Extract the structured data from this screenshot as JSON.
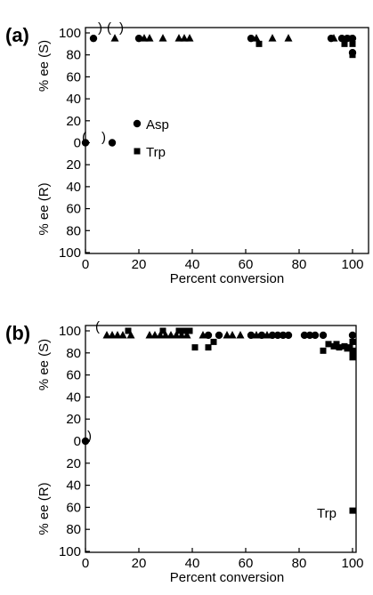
{
  "chart_data": [
    {
      "panel_label": "(a)",
      "type": "scatter",
      "xlabel": "Percent conversion",
      "ylabel_top": "% ee (S)",
      "ylabel_bottom": "% ee (R)",
      "x_ticks": [
        "0",
        "20",
        "40",
        "60",
        "80",
        "100"
      ],
      "y_ticks": [
        "100",
        "80",
        "60",
        "40",
        "20",
        "0",
        "20",
        "40",
        "60",
        "80",
        "100"
      ],
      "xlim": [
        0,
        110
      ],
      "ylim": [
        -100,
        100
      ],
      "legend": [
        "Asp",
        "Trp"
      ],
      "annotations": [
        ")",
        "(",
        ")",
        "(",
        ")"
      ],
      "series": [
        {
          "name": "Asp",
          "marker": "circle",
          "points": [
            [
              0,
              0
            ],
            [
              3,
              95
            ],
            [
              10,
              0
            ],
            [
              20,
              95
            ],
            [
              62,
              95
            ],
            [
              92,
              95
            ],
            [
              96,
              95
            ],
            [
              98,
              95
            ],
            [
              100,
              95
            ],
            [
              100,
              82
            ]
          ]
        },
        {
          "name": "",
          "marker": "triangle",
          "points": [
            [
              11,
              95
            ],
            [
              22,
              95
            ],
            [
              24,
              95
            ],
            [
              29,
              95
            ],
            [
              35,
              95
            ],
            [
              37,
              95
            ],
            [
              39,
              95
            ],
            [
              64,
              95
            ],
            [
              70,
              95
            ],
            [
              76,
              95
            ],
            [
              93,
              95
            ]
          ]
        },
        {
          "name": "Trp",
          "marker": "square",
          "points": [
            [
              65,
              90
            ],
            [
              97,
              90
            ],
            [
              99,
              95
            ],
            [
              100,
              90
            ],
            [
              100,
              80
            ]
          ]
        }
      ]
    },
    {
      "panel_label": "(b)",
      "type": "scatter",
      "xlabel": "Percent conversion",
      "ylabel_top": "% ee (S)",
      "ylabel_bottom": "% ee (R)",
      "x_ticks": [
        "0",
        "20",
        "40",
        "60",
        "80",
        "100"
      ],
      "y_ticks": [
        "100",
        "80",
        "60",
        "40",
        "20",
        "0",
        "20",
        "40",
        "60",
        "80",
        "100"
      ],
      "xlim": [
        0,
        100
      ],
      "ylim": [
        -100,
        100
      ],
      "legend": [
        "Trp"
      ],
      "annotations": [
        "(",
        ")"
      ],
      "series": [
        {
          "name": "",
          "marker": "circle",
          "points": [
            [
              0,
              0
            ],
            [
              46,
              96
            ],
            [
              50,
              96
            ],
            [
              62,
              96
            ],
            [
              66,
              96
            ],
            [
              70,
              96
            ],
            [
              72,
              96
            ],
            [
              74,
              96
            ],
            [
              76,
              96
            ],
            [
              82,
              96
            ],
            [
              84,
              96
            ],
            [
              86,
              96
            ],
            [
              89,
              96
            ],
            [
              100,
              96
            ]
          ]
        },
        {
          "name": "",
          "marker": "triangle",
          "points": [
            [
              8,
              96
            ],
            [
              10,
              96
            ],
            [
              12,
              96
            ],
            [
              14,
              96
            ],
            [
              17,
              96
            ],
            [
              24,
              96
            ],
            [
              26,
              96
            ],
            [
              28,
              96
            ],
            [
              30,
              96
            ],
            [
              32,
              96
            ],
            [
              34,
              96
            ],
            [
              36,
              96
            ],
            [
              38,
              96
            ],
            [
              44,
              96
            ],
            [
              53,
              96
            ],
            [
              55,
              96
            ],
            [
              58,
              96
            ],
            [
              64,
              96
            ],
            [
              68,
              96
            ]
          ]
        },
        {
          "name": "Trp",
          "marker": "square",
          "points": [
            [
              16,
              100
            ],
            [
              29,
              100
            ],
            [
              35,
              100
            ],
            [
              37,
              100
            ],
            [
              39,
              100
            ],
            [
              41,
              85
            ],
            [
              46,
              85
            ],
            [
              48,
              90
            ],
            [
              89,
              82
            ],
            [
              91,
              88
            ],
            [
              93,
              86
            ],
            [
              94,
              88
            ],
            [
              95,
              85
            ],
            [
              97,
              86
            ],
            [
              98,
              84
            ],
            [
              99,
              85
            ],
            [
              100,
              82
            ],
            [
              100,
              78
            ],
            [
              100,
              76
            ],
            [
              100,
              90
            ],
            [
              100,
              -63
            ]
          ]
        }
      ]
    }
  ]
}
